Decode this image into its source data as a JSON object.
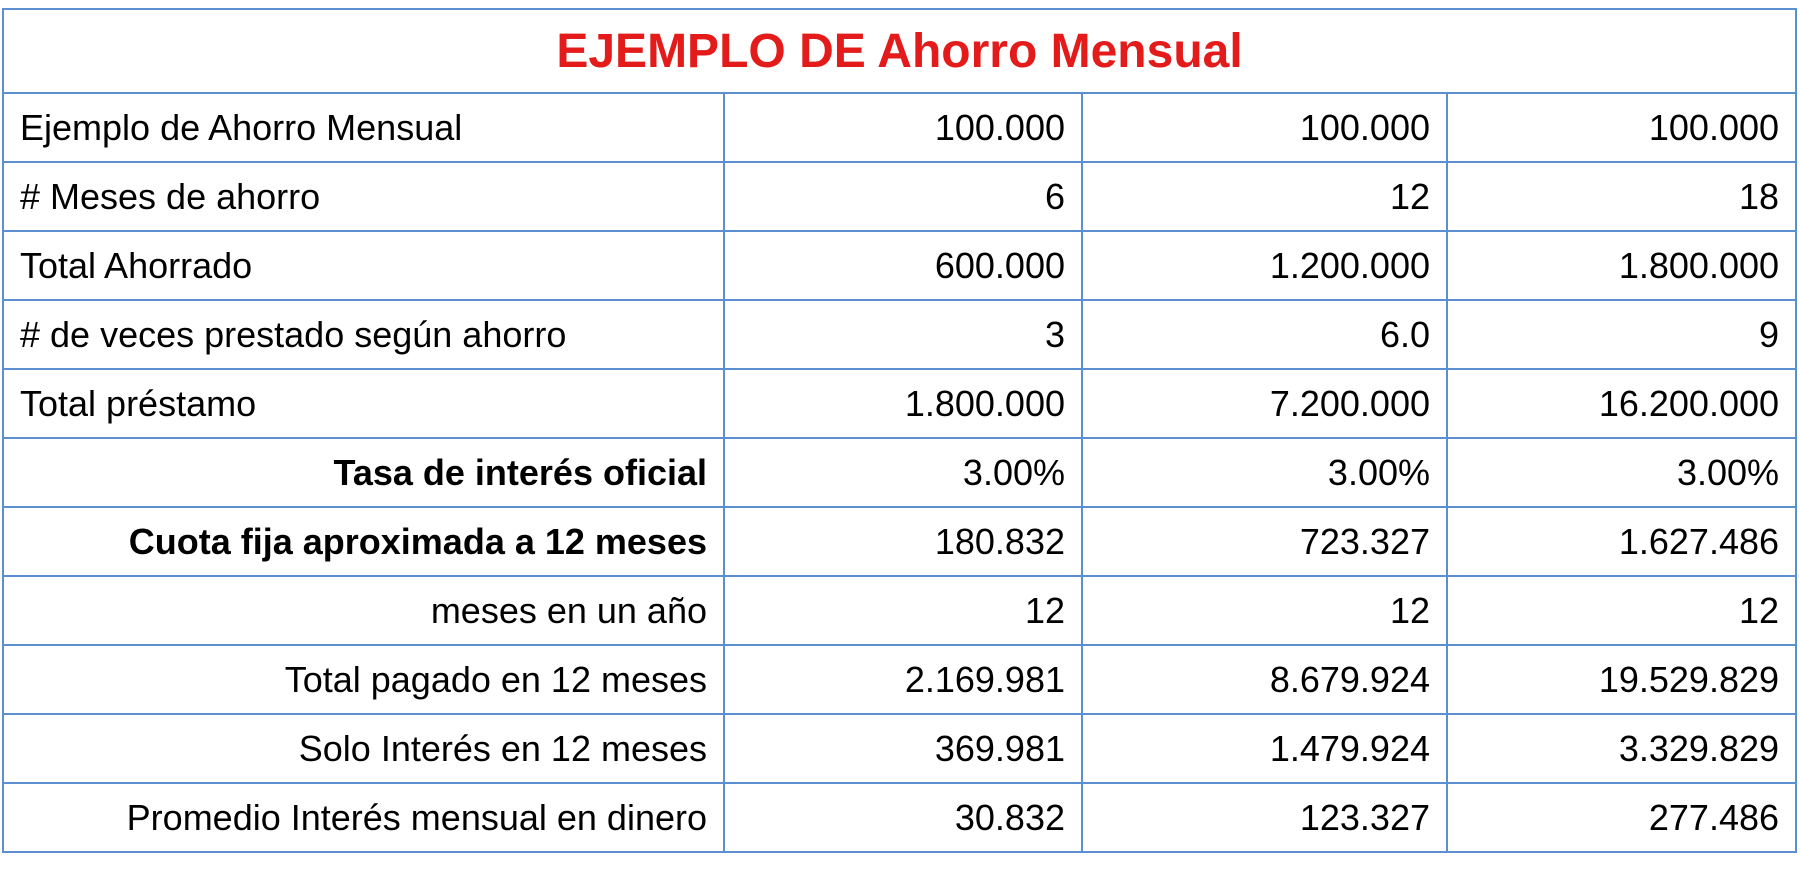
{
  "title": "EJEMPLO DE Ahorro Mensual",
  "rows": [
    {
      "label": "Ejemplo de Ahorro Mensual",
      "values": [
        "100.000",
        "100.000",
        "100.000"
      ]
    },
    {
      "label": "# Meses de ahorro",
      "values": [
        "6",
        "12",
        "18"
      ]
    },
    {
      "label": "Total Ahorrado",
      "values": [
        "600.000",
        "1.200.000",
        "1.800.000"
      ]
    },
    {
      "label": "# de veces prestado según ahorro",
      "values": [
        "3",
        "6.0",
        "9"
      ]
    },
    {
      "label": "Total préstamo",
      "values": [
        "1.800.000",
        "7.200.000",
        "16.200.000"
      ]
    },
    {
      "label": "Tasa de interés oficial",
      "values": [
        "3.00%",
        "3.00%",
        "3.00%"
      ]
    },
    {
      "label": "Cuota fija aproximada a 12 meses",
      "values": [
        "180.832",
        "723.327",
        "1.627.486"
      ]
    },
    {
      "label": "meses en un año",
      "values": [
        "12",
        "12",
        "12"
      ]
    },
    {
      "label": "Total pagado en 12 meses",
      "values": [
        "2.169.981",
        "8.679.924",
        "19.529.829"
      ]
    },
    {
      "label": "Solo Interés en 12 meses",
      "values": [
        "369.981",
        "1.479.924",
        "3.329.829"
      ]
    },
    {
      "label": "Promedio Interés mensual en dinero",
      "values": [
        "30.832",
        "123.327",
        "277.486"
      ]
    }
  ],
  "colors": {
    "title": "#e31b1b",
    "border": "#5b8fd0",
    "text": "#000000"
  }
}
